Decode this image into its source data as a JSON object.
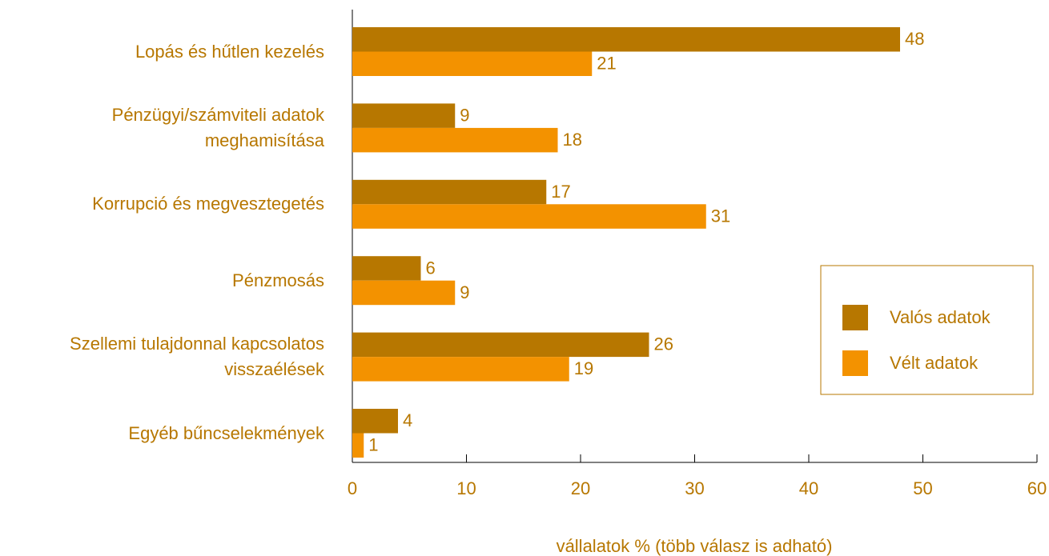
{
  "chart_data": {
    "type": "bar",
    "orientation": "horizontal",
    "categories": [
      "Lopás és hűtlen kezelés",
      "Pénzügyi/számviteli adatok\nmeghamisítása",
      "Korrupció és megvesztegetés",
      "Pénzmosás",
      "Szellemi tulajdonnal kapcsolatos\nvisszaélések",
      "Egyéb bűncselekmények"
    ],
    "series": [
      {
        "name": "Valós adatok",
        "color": "#b77700",
        "values": [
          48,
          9,
          17,
          6,
          26,
          4
        ]
      },
      {
        "name": "Vélt adatok",
        "color": "#f39200",
        "values": [
          21,
          18,
          31,
          9,
          19,
          1
        ]
      }
    ],
    "xlim": [
      0,
      60
    ],
    "xticks": [
      0,
      10,
      20,
      30,
      40,
      50,
      60
    ],
    "xlabel": "vállalatok % (több válasz is adható)",
    "legend": "right",
    "grid": false
  }
}
